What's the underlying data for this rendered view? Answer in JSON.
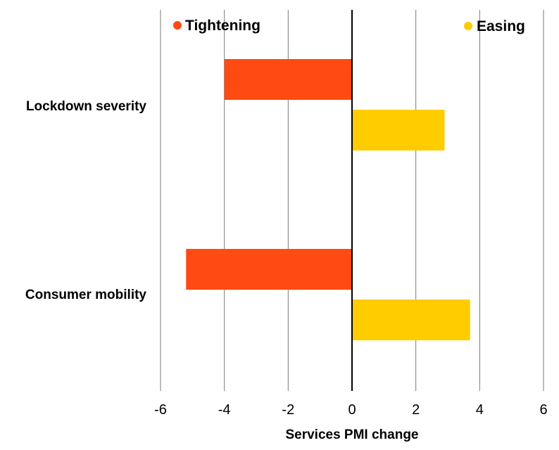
{
  "chart_data": {
    "type": "bar",
    "orientation": "horizontal",
    "categories": [
      "Lockdown severity",
      "Consumer mobility"
    ],
    "series": [
      {
        "name": "Tightening",
        "values": [
          -4.0,
          -5.2
        ],
        "color": "#ff4a12"
      },
      {
        "name": "Easing",
        "values": [
          2.9,
          3.7
        ],
        "color": "#ffcc00"
      }
    ],
    "xlabel": "Services PMI change",
    "ylabel": "",
    "xlim": [
      -6,
      6
    ],
    "xticks": [
      -6,
      -4,
      -2,
      0,
      2,
      4,
      6
    ],
    "grid": true,
    "legend_position": "top"
  }
}
